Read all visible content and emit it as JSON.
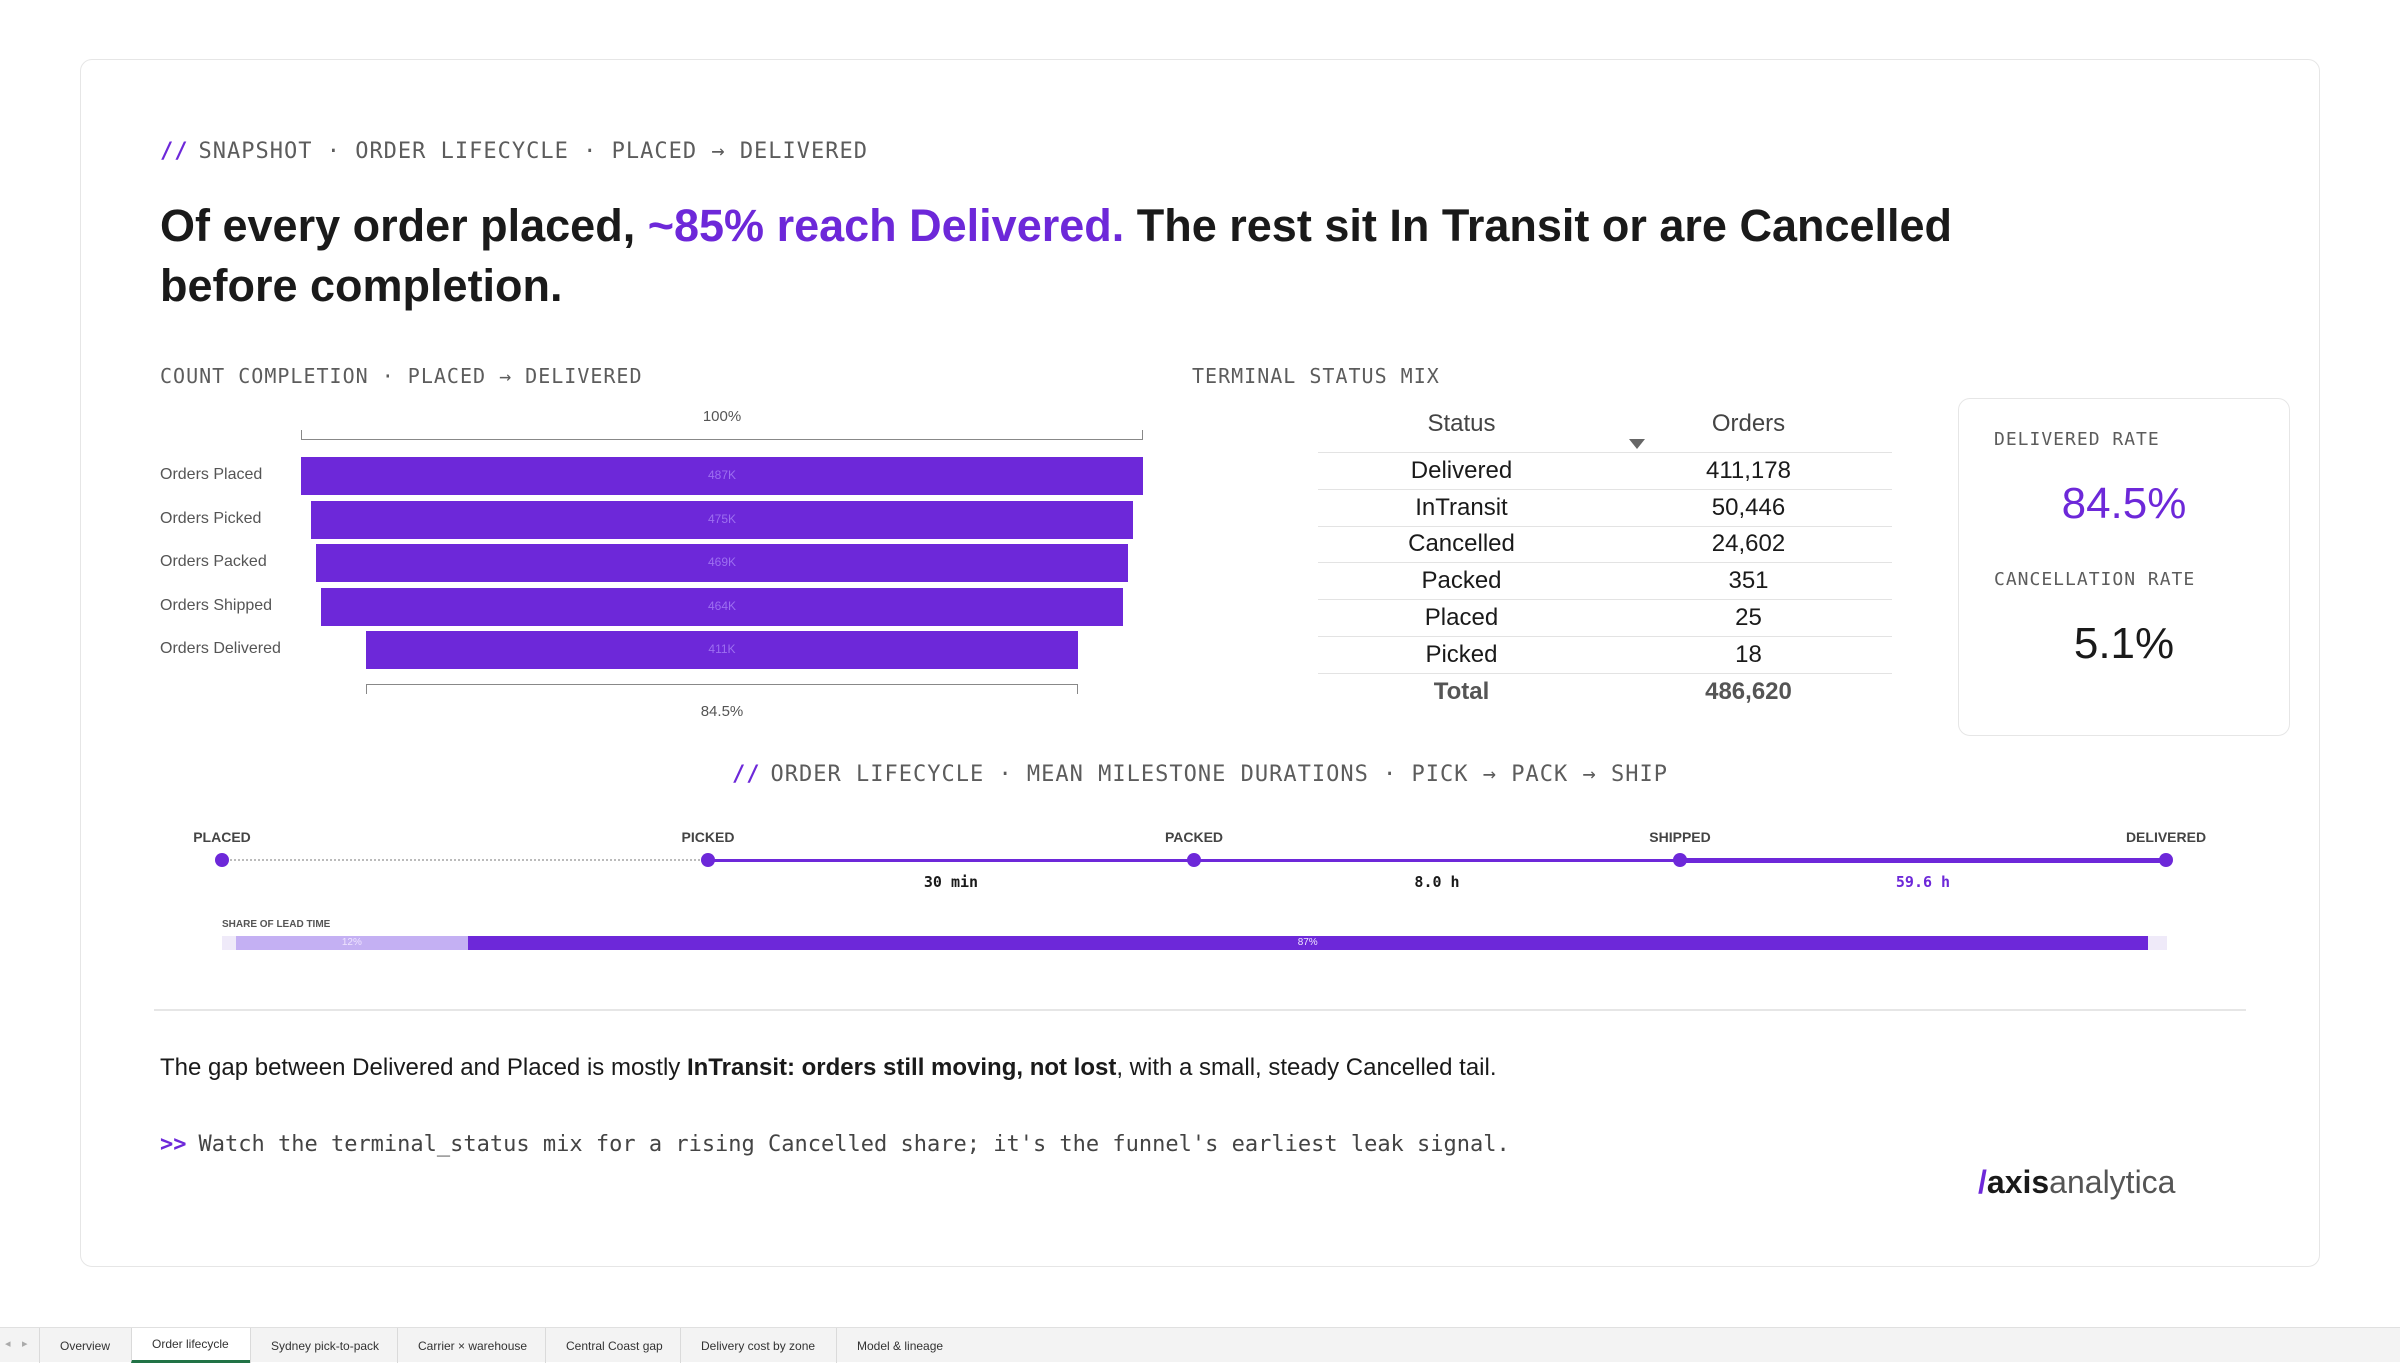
{
  "eyebrow": {
    "slash": "//",
    "text": "SNAPSHOT · ORDER LIFECYCLE · PLACED → DELIVERED"
  },
  "headline": {
    "before": "Of every order placed, ",
    "accent": "~85% reach Delivered.",
    "after": " The rest sit In Transit or are Cancelled before completion."
  },
  "funnel": {
    "title": "COUNT COMPLETION · PLACED → DELIVERED",
    "top_bracket_label": "100%",
    "bottom_bracket_label": "84.5%",
    "stages": [
      {
        "label": "Orders Placed",
        "value_label": "487K",
        "value": 486620
      },
      {
        "label": "Orders Picked",
        "value_label": "475K",
        "value": 475000
      },
      {
        "label": "Orders Packed",
        "value_label": "469K",
        "value": 469000
      },
      {
        "label": "Orders Shipped",
        "value_label": "464K",
        "value": 464000
      },
      {
        "label": "Orders Delivered",
        "value_label": "411K",
        "value": 411178
      }
    ]
  },
  "status_mix": {
    "title": "TERMINAL STATUS MIX",
    "col_status": "Status",
    "col_orders": "Orders",
    "rows": [
      {
        "status": "Delivered",
        "orders": "411,178"
      },
      {
        "status": "InTransit",
        "orders": "50,446"
      },
      {
        "status": "Cancelled",
        "orders": "24,602"
      },
      {
        "status": "Packed",
        "orders": "351"
      },
      {
        "status": "Placed",
        "orders": "25"
      },
      {
        "status": "Picked",
        "orders": "18"
      }
    ],
    "total_label": "Total",
    "total_value": "486,620"
  },
  "kpi": {
    "delivered_label": "DELIVERED RATE",
    "delivered_value": "84.5%",
    "cancel_label": "CANCELLATION RATE",
    "cancel_value": "5.1%",
    "accent_color": "#6d28d9"
  },
  "timeline": {
    "slash": "//",
    "title": "ORDER LIFECYCLE · MEAN MILESTONE DURATIONS · PICK → PACK → SHIP",
    "milestones": [
      "PLACED",
      "PICKED",
      "PACKED",
      "SHIPPED",
      "DELIVERED"
    ],
    "durations": [
      {
        "text": "30 min",
        "color": "#1a1a1a"
      },
      {
        "text": "8.0 h",
        "color": "#1a1a1a"
      },
      {
        "text": "59.6 h",
        "color": "#6d28d9"
      }
    ],
    "share_label": "SHARE OF LEAD TIME",
    "share": [
      {
        "label": "12%",
        "value": 0.12,
        "color": "#c4b0f3"
      },
      {
        "label": "87%",
        "value": 0.87,
        "color": "#6d28d9"
      }
    ]
  },
  "narrative": {
    "before": "The gap between Delivered and Placed is mostly ",
    "bold": "InTransit: orders still moving, not lost",
    "after": ", with a small, steady Cancelled tail."
  },
  "callout": {
    "chevron": ">>",
    "text": "Watch the terminal_status mix for a rising Cancelled share; it's the funnel's earliest leak signal."
  },
  "logo": {
    "slash": "/",
    "brand": "axis",
    "suffix": "analytica"
  },
  "tabs": {
    "items": [
      "Overview",
      "Order lifecycle",
      "Sydney pick-to-pack",
      "Carrier × warehouse",
      "Central Coast gap",
      "Delivery cost by zone",
      "Model & lineage"
    ],
    "active": "Order lifecycle"
  }
}
